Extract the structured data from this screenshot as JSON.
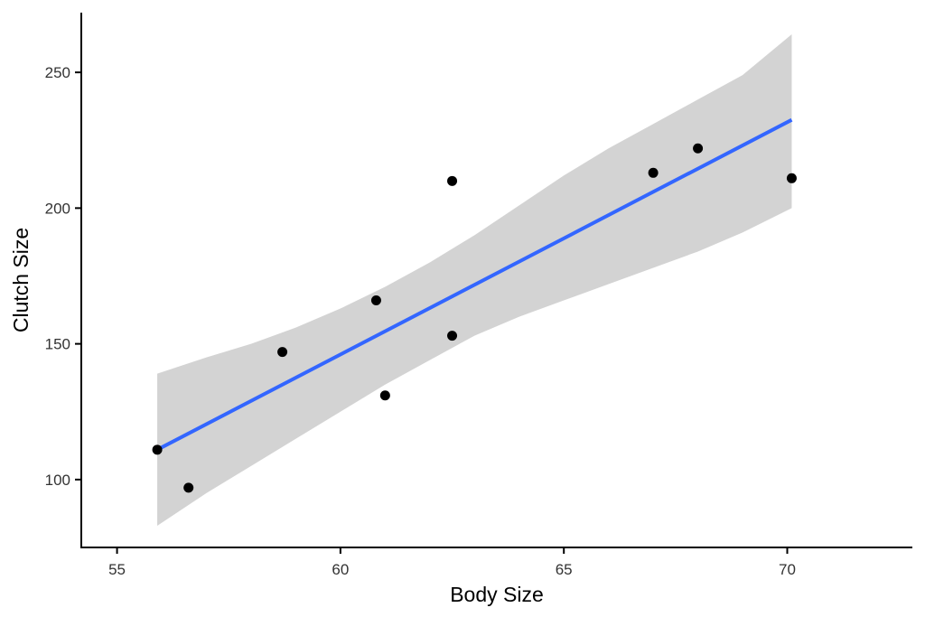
{
  "chart_data": {
    "type": "scatter",
    "xlabel": "Body Size",
    "ylabel": "Clutch Size",
    "xlim": [
      54.2,
      72.8
    ],
    "ylim": [
      75,
      272
    ],
    "x_ticks": [
      55,
      60,
      65,
      70
    ],
    "y_ticks": [
      100,
      150,
      200,
      250
    ],
    "grid": false,
    "points": [
      {
        "x": 55.9,
        "y": 111
      },
      {
        "x": 56.6,
        "y": 97
      },
      {
        "x": 58.7,
        "y": 147
      },
      {
        "x": 60.8,
        "y": 166
      },
      {
        "x": 61.0,
        "y": 131
      },
      {
        "x": 62.5,
        "y": 210
      },
      {
        "x": 62.5,
        "y": 153
      },
      {
        "x": 67.0,
        "y": 213
      },
      {
        "x": 68.0,
        "y": 222
      },
      {
        "x": 70.1,
        "y": 211
      }
    ],
    "fit_line": {
      "method": "linear",
      "x": [
        55.9,
        70.1
      ],
      "y": [
        111,
        232.5
      ],
      "color": "#3366FF"
    },
    "confidence_band": {
      "color": "#D3D3D3",
      "x": [
        55.9,
        57.0,
        58.0,
        59.0,
        60.0,
        61.0,
        62.0,
        63.0,
        64.0,
        65.0,
        66.0,
        67.0,
        68.0,
        69.0,
        70.1
      ],
      "upper": [
        139,
        145,
        150,
        156,
        163,
        171,
        180,
        190,
        201,
        212,
        222,
        231,
        240,
        249,
        264
      ],
      "lower": [
        83,
        95,
        105,
        115,
        125,
        135,
        144,
        153,
        160,
        166,
        172,
        178,
        184,
        191,
        200
      ]
    },
    "colors": {
      "points": "#000000",
      "axis": "#000000"
    }
  }
}
